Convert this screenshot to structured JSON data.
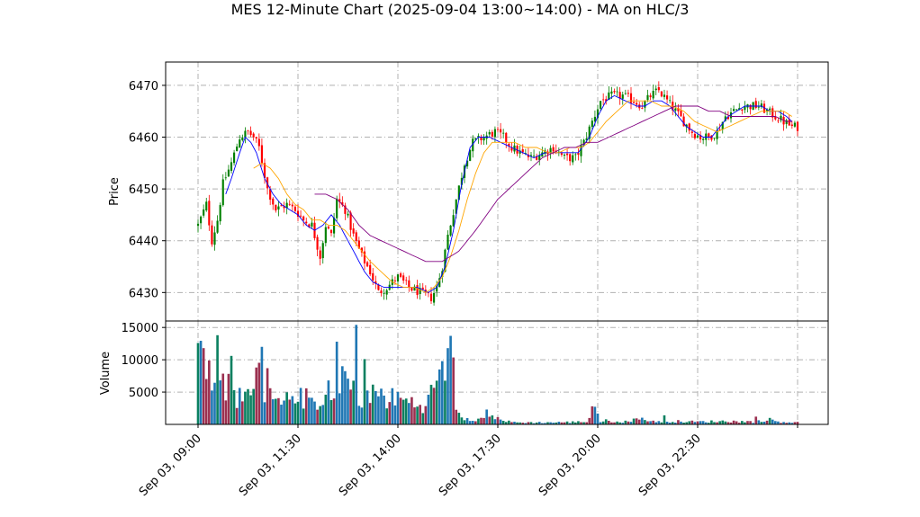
{
  "chart_data": {
    "type": "candlestick",
    "title": "MES 12-Minute Chart (2025-09-04 13:00~14:00) - MA on HLC/3",
    "price_panel": {
      "ylabel": "Price",
      "ylim": [
        6424.5,
        6474.5
      ],
      "yticks": [
        6430,
        6440,
        6450,
        6460,
        6470
      ],
      "grid": true
    },
    "volume_panel": {
      "ylabel": "Volume",
      "ylim": [
        0,
        16000
      ],
      "yticks": [
        5000,
        10000,
        15000
      ],
      "grid": true
    },
    "x_axis": {
      "ticks": [
        "Sep 03, 09:00",
        "Sep 03, 11:30",
        "Sep 03, 14:00",
        "Sep 03, 17:30",
        "Sep 03, 20:00",
        "Sep 03, 22:30"
      ],
      "label_rotation": 45
    },
    "price_anchors": [
      [
        0,
        6443
      ],
      [
        3,
        6447
      ],
      [
        5,
        6440
      ],
      [
        7,
        6444
      ],
      [
        9,
        6451
      ],
      [
        12,
        6455
      ],
      [
        15,
        6460
      ],
      [
        18,
        6461
      ],
      [
        20,
        6460
      ],
      [
        22,
        6458
      ],
      [
        25,
        6450
      ],
      [
        28,
        6446
      ],
      [
        32,
        6447
      ],
      [
        35,
        6446
      ],
      [
        38,
        6444
      ],
      [
        41,
        6443
      ],
      [
        44,
        6437
      ],
      [
        46,
        6443
      ],
      [
        48,
        6441
      ],
      [
        50,
        6448
      ],
      [
        53,
        6446
      ],
      [
        56,
        6441
      ],
      [
        59,
        6437
      ],
      [
        62,
        6434
      ],
      [
        65,
        6430
      ],
      [
        68,
        6431
      ],
      [
        72,
        6433
      ],
      [
        76,
        6431
      ],
      [
        80,
        6430
      ],
      [
        84,
        6429
      ],
      [
        86,
        6431
      ],
      [
        88,
        6435
      ],
      [
        90,
        6441
      ],
      [
        93,
        6448
      ],
      [
        96,
        6455
      ],
      [
        99,
        6459
      ],
      [
        103,
        6460
      ],
      [
        107,
        6461
      ],
      [
        110,
        6460
      ],
      [
        113,
        6458
      ],
      [
        116,
        6457
      ],
      [
        120,
        6456
      ],
      [
        124,
        6457
      ],
      [
        128,
        6458
      ],
      [
        132,
        6456
      ],
      [
        136,
        6456
      ],
      [
        139,
        6459
      ],
      [
        142,
        6463
      ],
      [
        145,
        6467
      ],
      [
        149,
        6468
      ],
      [
        153,
        6468
      ],
      [
        157,
        6467
      ],
      [
        160,
        6466
      ],
      [
        163,
        6468
      ],
      [
        166,
        6469
      ],
      [
        169,
        6467
      ],
      [
        172,
        6465
      ],
      [
        175,
        6463
      ],
      [
        178,
        6461
      ],
      [
        181,
        6460
      ],
      [
        184,
        6460
      ],
      [
        187,
        6461
      ],
      [
        190,
        6464
      ],
      [
        193,
        6465
      ],
      [
        196,
        6466
      ],
      [
        199,
        6466
      ],
      [
        202,
        6466
      ],
      [
        205,
        6465
      ],
      [
        208,
        6464
      ],
      [
        211,
        6463
      ],
      [
        214,
        6462
      ],
      [
        216,
        6462
      ]
    ],
    "volume_anchors": [
      [
        0,
        11000
      ],
      [
        2,
        12500
      ],
      [
        4,
        9000
      ],
      [
        6,
        7000
      ],
      [
        8,
        8500
      ],
      [
        10,
        6000
      ],
      [
        12,
        9500
      ],
      [
        14,
        4500
      ],
      [
        17,
        3500
      ],
      [
        20,
        4500
      ],
      [
        22,
        9500
      ],
      [
        24,
        5500
      ],
      [
        26,
        4000
      ],
      [
        29,
        3000
      ],
      [
        32,
        3500
      ],
      [
        35,
        5500
      ],
      [
        37,
        4000
      ],
      [
        40,
        4000
      ],
      [
        43,
        3500
      ],
      [
        46,
        4500
      ],
      [
        49,
        3500
      ],
      [
        52,
        4500
      ],
      [
        55,
        9000
      ],
      [
        58,
        5000
      ],
      [
        61,
        4000
      ],
      [
        64,
        5000
      ],
      [
        68,
        4000
      ],
      [
        72,
        4000
      ],
      [
        76,
        3500
      ],
      [
        80,
        3000
      ],
      [
        83,
        3500
      ],
      [
        85,
        6000
      ],
      [
        87,
        7000
      ],
      [
        89,
        9500
      ],
      [
        91,
        12000
      ],
      [
        92,
        9000
      ],
      [
        93,
        3500
      ],
      [
        95,
        1200
      ],
      [
        100,
        800
      ],
      [
        105,
        900
      ],
      [
        108,
        1500
      ],
      [
        110,
        500
      ],
      [
        115,
        300
      ],
      [
        125,
        300
      ],
      [
        135,
        350
      ],
      [
        140,
        450
      ],
      [
        143,
        2000
      ],
      [
        145,
        600
      ],
      [
        150,
        500
      ],
      [
        155,
        400
      ],
      [
        160,
        1000
      ],
      [
        163,
        500
      ],
      [
        170,
        500
      ],
      [
        180,
        400
      ],
      [
        190,
        500
      ],
      [
        200,
        400
      ],
      [
        205,
        800
      ],
      [
        210,
        400
      ],
      [
        216,
        300
      ]
    ],
    "volume_spikes": [
      [
        2,
        11800
      ],
      [
        4,
        9900
      ],
      [
        7,
        13800
      ],
      [
        12,
        10600
      ],
      [
        23,
        12000
      ],
      [
        25,
        8700
      ],
      [
        47,
        6800
      ],
      [
        50,
        12800
      ],
      [
        52,
        9000
      ],
      [
        57,
        15400
      ],
      [
        60,
        10100
      ],
      [
        87,
        8500
      ],
      [
        90,
        11800
      ],
      [
        91,
        13700
      ],
      [
        104,
        2300
      ],
      [
        142,
        2800
      ],
      [
        168,
        1400
      ],
      [
        201,
        1200
      ]
    ],
    "ma_lines": [
      {
        "color": "#0000ff",
        "start": 10,
        "anchors": [
          [
            10,
            6449
          ],
          [
            12,
            6452
          ],
          [
            15,
            6457
          ],
          [
            17,
            6460
          ],
          [
            19,
            6459
          ],
          [
            21,
            6457
          ],
          [
            24,
            6452
          ],
          [
            27,
            6449
          ],
          [
            30,
            6447
          ],
          [
            33,
            6446
          ],
          [
            36,
            6445
          ],
          [
            39,
            6443
          ],
          [
            42,
            6442
          ],
          [
            45,
            6443
          ],
          [
            48,
            6445
          ],
          [
            51,
            6443
          ],
          [
            54,
            6440
          ],
          [
            57,
            6437
          ],
          [
            60,
            6434
          ],
          [
            63,
            6432
          ],
          [
            67,
            6431
          ],
          [
            71,
            6431
          ],
          [
            75,
            6431
          ],
          [
            79,
            6431
          ],
          [
            83,
            6430
          ],
          [
            86,
            6431
          ],
          [
            89,
            6435
          ],
          [
            92,
            6442
          ],
          [
            95,
            6451
          ],
          [
            98,
            6458
          ],
          [
            101,
            6460
          ],
          [
            105,
            6460
          ],
          [
            109,
            6459
          ],
          [
            113,
            6458
          ],
          [
            117,
            6457
          ],
          [
            121,
            6456
          ],
          [
            125,
            6457
          ],
          [
            129,
            6457
          ],
          [
            133,
            6457
          ],
          [
            137,
            6457
          ],
          [
            141,
            6460
          ],
          [
            144,
            6464
          ],
          [
            147,
            6467
          ],
          [
            150,
            6468
          ],
          [
            154,
            6467
          ],
          [
            158,
            6466
          ],
          [
            161,
            6466
          ],
          [
            164,
            6467
          ],
          [
            167,
            6467
          ],
          [
            170,
            6466
          ],
          [
            173,
            6464
          ],
          [
            176,
            6462
          ],
          [
            179,
            6461
          ],
          [
            182,
            6460
          ],
          [
            185,
            6460
          ],
          [
            188,
            6462
          ],
          [
            191,
            6464
          ],
          [
            194,
            6465
          ],
          [
            197,
            6466
          ],
          [
            200,
            6466
          ],
          [
            203,
            6466
          ],
          [
            206,
            6465
          ],
          [
            209,
            6465
          ],
          [
            212,
            6464
          ],
          [
            214,
            6463
          ]
        ]
      },
      {
        "color": "#ffa500",
        "start": 20,
        "anchors": [
          [
            20,
            6454
          ],
          [
            23,
            6455
          ],
          [
            26,
            6454
          ],
          [
            29,
            6452
          ],
          [
            32,
            6449
          ],
          [
            35,
            6447
          ],
          [
            38,
            6446
          ],
          [
            41,
            6444
          ],
          [
            44,
            6444
          ],
          [
            47,
            6443
          ],
          [
            50,
            6443
          ],
          [
            53,
            6442
          ],
          [
            56,
            6440
          ],
          [
            59,
            6438
          ],
          [
            62,
            6436
          ],
          [
            66,
            6434
          ],
          [
            70,
            6432
          ],
          [
            74,
            6431
          ],
          [
            78,
            6431
          ],
          [
            82,
            6430
          ],
          [
            85,
            6431
          ],
          [
            88,
            6433
          ],
          [
            91,
            6437
          ],
          [
            94,
            6442
          ],
          [
            97,
            6448
          ],
          [
            100,
            6453
          ],
          [
            103,
            6457
          ],
          [
            106,
            6459
          ],
          [
            110,
            6459
          ],
          [
            114,
            6459
          ],
          [
            118,
            6458
          ],
          [
            122,
            6458
          ],
          [
            126,
            6457
          ],
          [
            130,
            6457
          ],
          [
            134,
            6458
          ],
          [
            138,
            6458
          ],
          [
            141,
            6459
          ],
          [
            144,
            6461
          ],
          [
            147,
            6463
          ],
          [
            151,
            6465
          ],
          [
            155,
            6467
          ],
          [
            159,
            6467
          ],
          [
            163,
            6467
          ],
          [
            167,
            6466
          ],
          [
            171,
            6466
          ],
          [
            175,
            6465
          ],
          [
            179,
            6463
          ],
          [
            183,
            6462
          ],
          [
            187,
            6461
          ],
          [
            191,
            6462
          ],
          [
            195,
            6463
          ],
          [
            199,
            6464
          ],
          [
            203,
            6465
          ],
          [
            207,
            6465
          ],
          [
            211,
            6465
          ],
          [
            214,
            6464
          ]
        ]
      },
      {
        "color": "#800080",
        "start": 42,
        "anchors": [
          [
            42,
            6449
          ],
          [
            46,
            6449
          ],
          [
            50,
            6448
          ],
          [
            54,
            6446
          ],
          [
            58,
            6443
          ],
          [
            62,
            6441
          ],
          [
            66,
            6440
          ],
          [
            70,
            6439
          ],
          [
            74,
            6438
          ],
          [
            78,
            6437
          ],
          [
            82,
            6436
          ],
          [
            85,
            6436
          ],
          [
            88,
            6436
          ],
          [
            91,
            6437
          ],
          [
            94,
            6438
          ],
          [
            97,
            6440
          ],
          [
            100,
            6442
          ],
          [
            104,
            6445
          ],
          [
            108,
            6448
          ],
          [
            112,
            6450
          ],
          [
            116,
            6452
          ],
          [
            120,
            6454
          ],
          [
            124,
            6456
          ],
          [
            128,
            6457
          ],
          [
            132,
            6458
          ],
          [
            136,
            6458
          ],
          [
            140,
            6459
          ],
          [
            144,
            6459
          ],
          [
            148,
            6460
          ],
          [
            152,
            6461
          ],
          [
            156,
            6462
          ],
          [
            160,
            6463
          ],
          [
            164,
            6464
          ],
          [
            168,
            6465
          ],
          [
            172,
            6466
          ],
          [
            176,
            6466
          ],
          [
            180,
            6466
          ],
          [
            184,
            6465
          ],
          [
            188,
            6465
          ],
          [
            192,
            6464
          ],
          [
            196,
            6464
          ],
          [
            200,
            6464
          ],
          [
            204,
            6464
          ],
          [
            208,
            6464
          ],
          [
            212,
            6463
          ],
          [
            214,
            6463
          ]
        ]
      }
    ],
    "bar_count": 217,
    "colors": {
      "up": "#008000",
      "down": "#ff0000",
      "volume_up": "#1f77b4",
      "volume_down": "#9b3050",
      "volume_alt": "#0a8060"
    }
  }
}
